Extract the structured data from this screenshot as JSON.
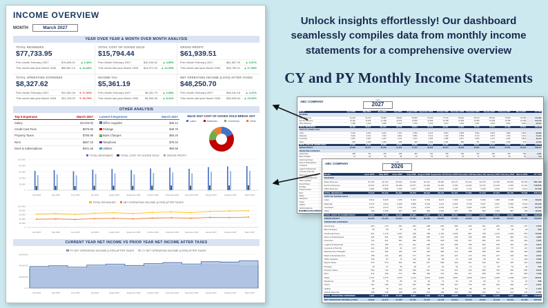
{
  "canvas": {
    "bg": "#cde9f0"
  },
  "intro": {
    "bold": "Unlock insights effortlessly!",
    "rest": " Our dashboard seamlessly compiles data from monthly income statements for a comprehensive overview"
  },
  "heading": "CY and PY Monthly Income Statements",
  "dashboard": {
    "title": "INCOME OVERVIEW",
    "month_label": "MONTH",
    "month_value": "March 2027",
    "section1": "YEAR OVER YEAR & MONTH OVER MONTH ANALYSIS",
    "section2": "OTHER ANALYSIS",
    "section3": "CURRENT YEAR NET INCOME VS PRIOR YEAR NET INCOME AFTER TAXES",
    "kpis": [
      {
        "label": "TOTAL REVENUES",
        "value": "$77,733.95",
        "rows": [
          {
            "label": "Prev Month February 2027",
            "value": "$76,694.01",
            "delta": "▲ 1.36%",
            "dir": "up"
          },
          {
            "label": "This month last year March 2026",
            "value": "$66,851.14",
            "delta": "▲ 16.28%",
            "dir": "up"
          }
        ]
      },
      {
        "label": "TOTAL COST OF GOODS SOLD",
        "value": "$15,794.44",
        "rows": [
          {
            "label": "Prev Month February 2027",
            "value": "$15,106.52",
            "delta": "▲ 4.55%",
            "dir": "up"
          },
          {
            "label": "This month last year March 2026",
            "value": "$14,071.03",
            "delta": "▲ 12.25%",
            "dir": "up"
          }
        ]
      },
      {
        "label": "GROSS PROFIT",
        "value": "$61,939.51",
        "rows": [
          {
            "label": "Prev Month February 2027",
            "value": "$61,587.49",
            "delta": "▲ 0.57%",
            "dir": "up"
          },
          {
            "label": "This month last year March 2026",
            "value": "$52,780.11",
            "delta": "▲ 17.35%",
            "dir": "up"
          }
        ]
      },
      {
        "label": "TOTAL OPERATING EXPENSES",
        "value": "$8,327.62",
        "rows": [
          {
            "label": "Prev Month February 2027",
            "value": "$10,081.06",
            "delta": "▼ 17.39%",
            "dir": "down"
          },
          {
            "label": "This month last year March 2026",
            "value": "$11,376.02",
            "delta": "▼ 26.79%",
            "dir": "down"
          }
        ]
      },
      {
        "label": "INCOME TAX",
        "value": "$5,361.19",
        "rows": [
          {
            "label": "Prev Month February 2027",
            "value": "$5,251.79",
            "delta": "▲ 2.08%",
            "dir": "up"
          },
          {
            "label": "This month last year March 2026",
            "value": "$4,945.26",
            "delta": "▲ 8.41%",
            "dir": "up"
          }
        ]
      },
      {
        "label": "NET OPERATING INCOME (LOSS) AFTER TAXES",
        "value": "$48,250.70",
        "rows": [
          {
            "label": "Prev Month February 2027",
            "value": "$46,230.18",
            "delta": "▲ 4.37%",
            "dir": "up"
          },
          {
            "label": "This month last year March 2026",
            "value": "$39,094.82",
            "delta": "▲ 23.42%",
            "dir": "up"
          }
        ]
      }
    ],
    "top5": {
      "title": "Top 5 Expenses",
      "col": "March 2027",
      "rows": [
        {
          "name": "Salary",
          "value": "$4,025.00"
        },
        {
          "name": "Credit Card Fees",
          "value": "$975.86"
        },
        {
          "name": "Property Taxes",
          "value": "$786.98"
        },
        {
          "name": "Rent",
          "value": "$687.15"
        },
        {
          "name": "Dues & Subscriptions",
          "value": "$401.46"
        }
      ]
    },
    "low5": {
      "title": "Lowest 5 Expenses",
      "col": "March 2027",
      "rows": [
        {
          "name": "Office Supplies",
          "value": "$35.12",
          "color": "#4472c4"
        },
        {
          "name": "Postage",
          "value": "$48.75",
          "color": "#c00000"
        },
        {
          "name": "Bank Charges",
          "value": "$56.20",
          "color": "#70ad47"
        },
        {
          "name": "Telephone",
          "value": "$78.43",
          "color": "#7030a0"
        },
        {
          "name": "Utilities",
          "value": "$96.58",
          "color": "#00b0f0"
        }
      ]
    }
  },
  "chart_data": [
    {
      "id": "cogs_breakout",
      "type": "pie",
      "title": "March 2027 COST OF GOODS SOLD BREAK OUT",
      "labels": [
        "Labor",
        "Materials",
        "Overhead",
        "Other"
      ],
      "values": [
        18,
        55,
        15,
        12
      ],
      "colors": [
        "#4472c4",
        "#c00000",
        "#70ad47",
        "#ed7d31"
      ]
    },
    {
      "id": "monthly_bars",
      "type": "bar",
      "categories": [
        "April 2026",
        "May 2026",
        "June 2026",
        "July 2026",
        "August 2026",
        "September 2026",
        "October 2026",
        "November 2026",
        "December 2026",
        "January 2027",
        "February 2027",
        "March 2027"
      ],
      "series": [
        {
          "name": "TOTAL REVENUES",
          "color": "#4472c4",
          "values": [
            62150,
            64480,
            61020,
            66240,
            68510,
            64980,
            70120,
            72480,
            69040,
            74520,
            76694,
            77734
          ]
        },
        {
          "name": "TOTAL COST OF GOODS SOLD",
          "color": "#1f3864",
          "values": [
            13480,
            13920,
            13180,
            14060,
            14390,
            13820,
            14760,
            15120,
            14580,
            15310,
            15107,
            15794
          ]
        },
        {
          "name": "GROSS PROFIT",
          "color": "#8eaadb",
          "values": [
            48670,
            50560,
            47840,
            52180,
            54120,
            51160,
            55360,
            57360,
            54460,
            59210,
            61587,
            61940
          ]
        }
      ],
      "ylim": [
        0,
        100000
      ],
      "yticks": [
        0,
        20000,
        40000,
        60000,
        80000,
        100000
      ]
    },
    {
      "id": "trend_lines",
      "type": "line",
      "categories": [
        "April 2026",
        "May 2026",
        "June 2026",
        "July 2026",
        "August 2026",
        "September 2026",
        "October 2026",
        "November 2026",
        "December 2026",
        "January 2027",
        "February 2027",
        "March 2027"
      ],
      "series": [
        {
          "name": "TOTAL REVENUES",
          "color": "#ffc000",
          "values": [
            62150,
            64480,
            61020,
            66240,
            68510,
            64980,
            70120,
            72480,
            69040,
            74520,
            76694,
            77734
          ]
        },
        {
          "name": "NET OPERATING INCOME (LOSS) AFTER TAXES",
          "color": "#ed7d31",
          "values": [
            38120,
            39480,
            37250,
            40820,
            42610,
            40060,
            43540,
            45310,
            42790,
            46820,
            46230,
            48251
          ]
        }
      ],
      "ylim": [
        0,
        100000
      ],
      "yticks": [
        0,
        20000,
        40000,
        60000,
        80000,
        100000
      ]
    },
    {
      "id": "net_income_area",
      "type": "area",
      "categories": [
        "April 2026",
        "May 2026",
        "June 2026",
        "July 2026",
        "August 2026",
        "September 2026",
        "October 2026",
        "November 2026",
        "December 2026",
        "January 2027",
        "February 2027",
        "March 2027"
      ],
      "series": [
        {
          "name": "PY NET OPERATING INCOME (LOSS) AFTER TAXES",
          "fill": "#8497b0",
          "line": "#1f3864",
          "values": [
            34020,
            35980,
            33470,
            36790,
            38160,
            36010,
            38950,
            40480,
            38420,
            41760,
            41230,
            39095
          ]
        },
        {
          "name": "CY NET OPERATING INCOME (LOSS) AFTER TAXES",
          "fill": "#b4c7e7",
          "line": "#2f5597",
          "values": [
            38120,
            39480,
            37250,
            40820,
            42610,
            40060,
            43540,
            45310,
            42790,
            46820,
            46230,
            48251
          ]
        }
      ],
      "ylim": [
        0,
        60000
      ],
      "yticks": [
        0,
        20000,
        40000,
        60000
      ]
    }
  ],
  "sheets": {
    "row_defs": [
      {
        "label": "REVENUE",
        "type": "section"
      },
      {
        "label": "Sales Revenue",
        "type": "item",
        "base": 61000
      },
      {
        "label": "Service Revenue",
        "type": "item",
        "base": 12400
      },
      {
        "label": "Other Revenue",
        "type": "item",
        "base": 3300
      },
      {
        "label": "TOTAL REVENUES",
        "type": "total",
        "base": 76700
      },
      {
        "label": "COST OF GOODS SOLD",
        "type": "section"
      },
      {
        "label": "Labor",
        "type": "item",
        "base": 7200
      },
      {
        "label": "Materials",
        "type": "item",
        "base": 5600
      },
      {
        "label": "Overhead",
        "type": "item",
        "base": 2100
      },
      {
        "label": "Other",
        "type": "item",
        "base": 900
      },
      {
        "label": "TOTAL COST OF GOODS SOLD",
        "type": "total",
        "base": 15800
      },
      {
        "label": "GROSS PROFIT",
        "type": "highlight",
        "base": 60900
      },
      {
        "label": "OPERATING EXPENSES",
        "type": "section"
      },
      {
        "label": "Advertising",
        "type": "item",
        "base": 320
      },
      {
        "label": "Bank Charges",
        "type": "item",
        "base": 56
      },
      {
        "label": "Credit Card Fees",
        "type": "item",
        "base": 975
      },
      {
        "label": "Dues & Subscriptions",
        "type": "item",
        "base": 401
      },
      {
        "label": "Insurance",
        "type": "item",
        "base": 610
      },
      {
        "label": "Legal & Professional",
        "type": "item",
        "base": 250
      },
      {
        "label": "Licenses & Permits",
        "type": "item",
        "base": 120
      },
      {
        "label": "Maintenance & Repairs",
        "type": "item",
        "base": 340
      },
      {
        "label": "Meals & Entertainment",
        "type": "item",
        "base": 180
      },
      {
        "label": "Office Supplies",
        "type": "item",
        "base": 95
      },
      {
        "label": "Payroll Taxes",
        "type": "item",
        "base": 520
      },
      {
        "label": "Postage",
        "type": "item",
        "base": 48
      },
      {
        "label": "Property Taxes",
        "type": "item",
        "base": 786
      },
      {
        "label": "Rent",
        "type": "item",
        "base": 687
      },
      {
        "label": "Salary",
        "type": "item",
        "base": 4025
      },
      {
        "label": "Telephone",
        "type": "item",
        "base": 78
      },
      {
        "label": "Travel",
        "type": "item",
        "base": 210
      },
      {
        "label": "Utilities",
        "type": "item",
        "base": 96
      },
      {
        "label": "Vehicle Expense",
        "type": "item",
        "base": 150
      },
      {
        "label": "TOTAL OPERATING EXPENSES",
        "type": "total",
        "base": 9950
      },
      {
        "label": "NET OPERATING INCOME (LOSS)",
        "type": "highlight",
        "base": 50950
      },
      {
        "label": "Income Tax",
        "type": "item",
        "base": 5360
      },
      {
        "label": "NET OPERATING INCOME (LOSS) AFTER TAXES",
        "type": "total",
        "base": 45590
      }
    ],
    "items": [
      {
        "company": "ABC COMPANY",
        "year": "2027",
        "year_label": "Year",
        "update_label": "Last update",
        "update_value": "March",
        "first_col": "Month",
        "scale": 1,
        "columns": [
          "April 2026",
          "May 2026",
          "June 2026",
          "July 2026",
          "August 2026",
          "September 2026",
          "October 2026",
          "November 2026",
          "December 2026",
          "January 2027",
          "February 2027",
          "March 2027",
          "CY YTD"
        ]
      },
      {
        "company": "ABC COMPANY",
        "year": "2026",
        "year_label": "Year",
        "update_label": "Last update",
        "update_value": "March",
        "first_col": "Month",
        "scale": 0.88,
        "columns": [
          "April 2025",
          "May 2025",
          "June 2025",
          "July 2025",
          "August 2025",
          "September 2025",
          "October 2025",
          "November 2025",
          "December 2025",
          "January 2026",
          "February 2026",
          "March 2026",
          "PY YTD"
        ]
      }
    ]
  }
}
